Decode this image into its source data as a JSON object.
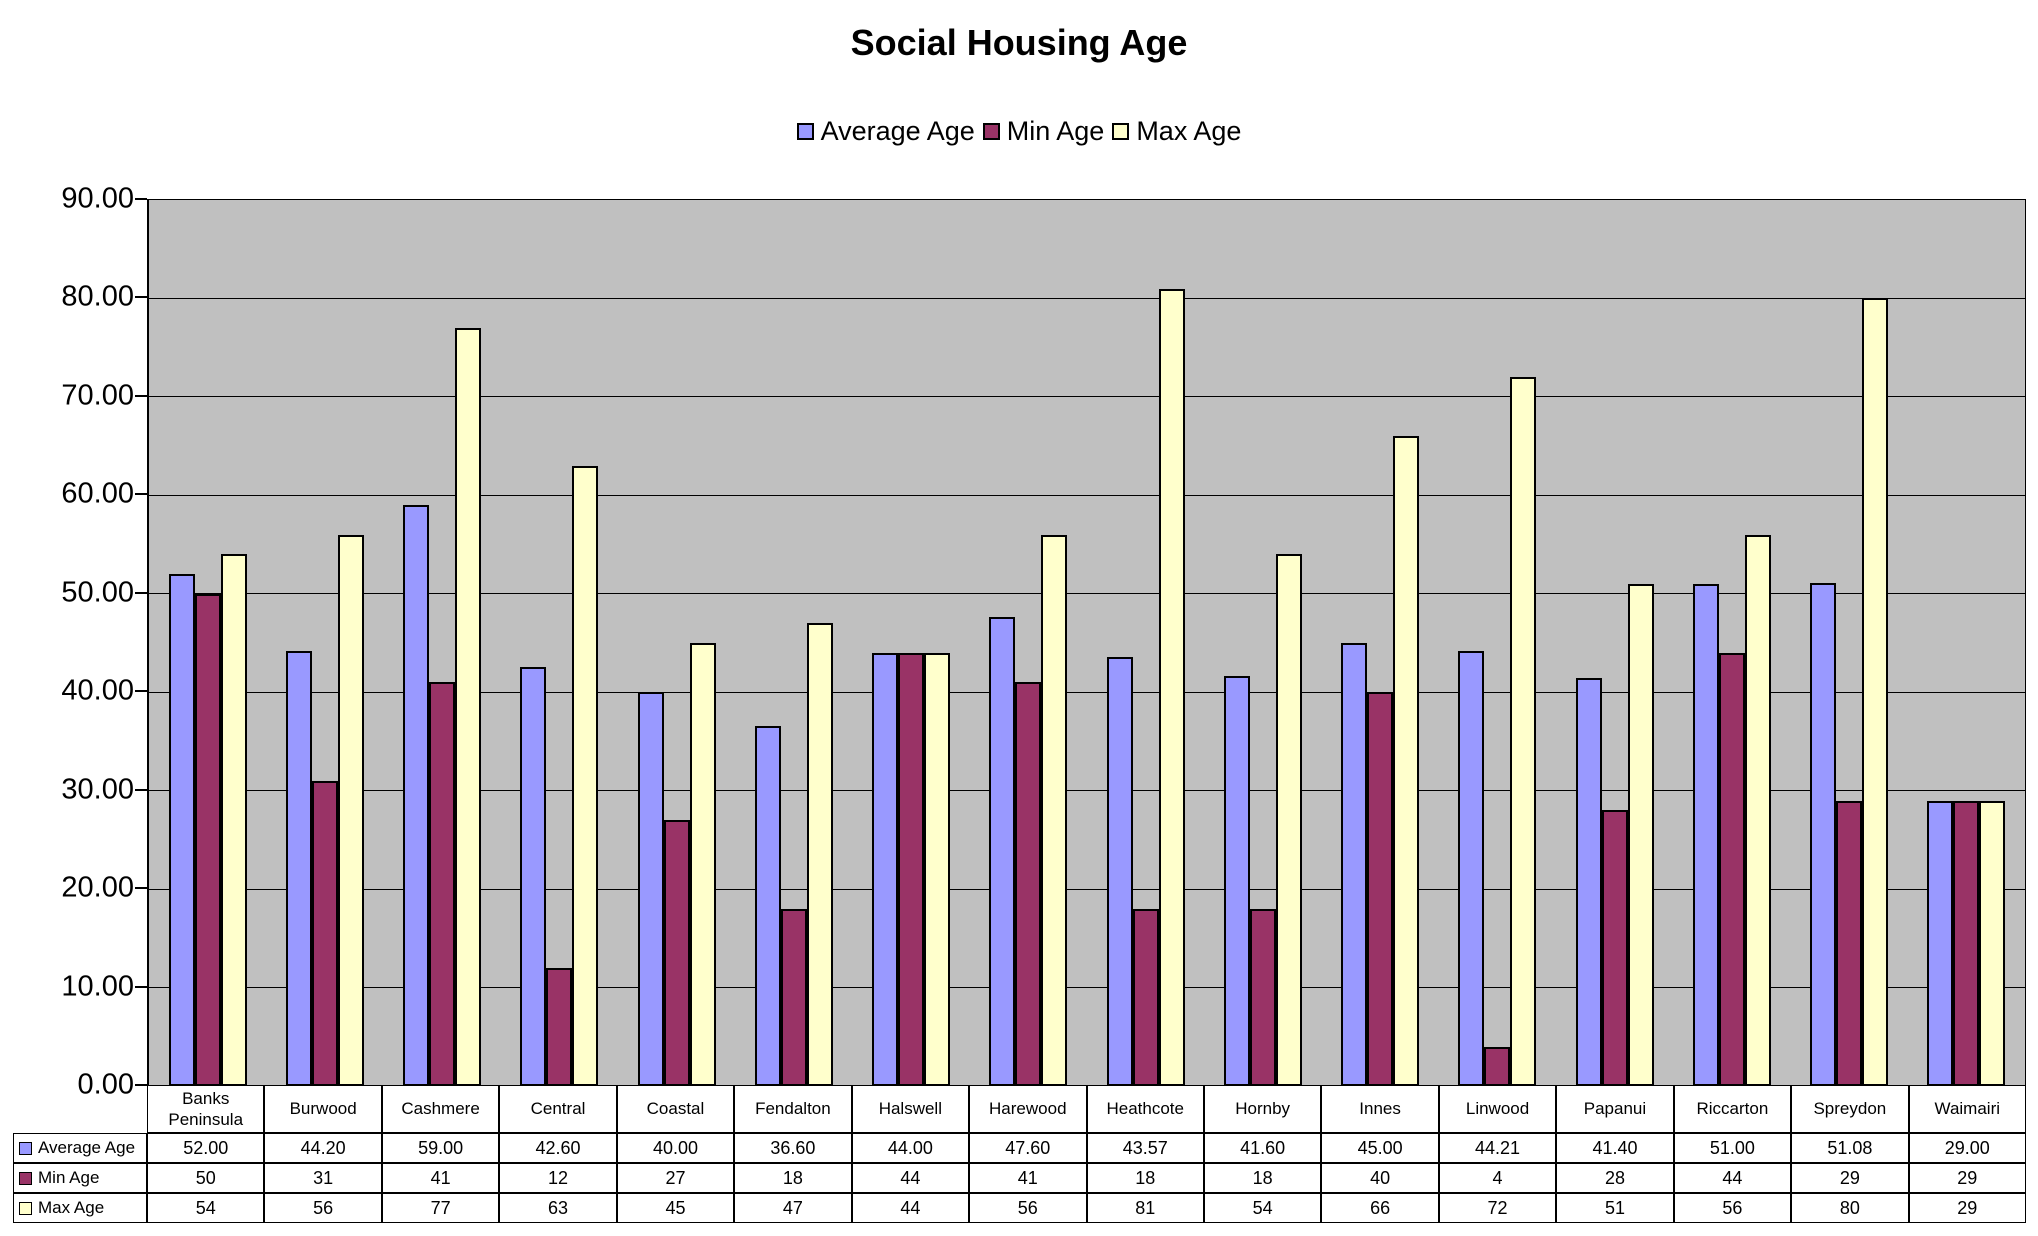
{
  "title": "Social Housing Age",
  "chart_data": {
    "type": "bar",
    "title": "Social Housing Age",
    "categories": [
      "Banks Peninsula",
      "Burwood",
      "Cashmere",
      "Central",
      "Coastal",
      "Fendalton",
      "Halswell",
      "Harewood",
      "Heathcote",
      "Hornby",
      "Innes",
      "Linwood",
      "Papanui",
      "Riccarton",
      "Spreydon",
      "Waimairi"
    ],
    "series": [
      {
        "name": "Average Age",
        "color": "#9999FF",
        "values": [
          52.0,
          44.2,
          59.0,
          42.6,
          40.0,
          36.6,
          44.0,
          47.6,
          43.57,
          41.6,
          45.0,
          44.21,
          41.4,
          51.0,
          51.08,
          29.0
        ],
        "display": [
          "52.00",
          "44.20",
          "59.00",
          "42.60",
          "40.00",
          "36.60",
          "44.00",
          "47.60",
          "43.57",
          "41.60",
          "45.00",
          "44.21",
          "41.40",
          "51.00",
          "51.08",
          "29.00"
        ]
      },
      {
        "name": "Min Age",
        "color": "#993366",
        "values": [
          50,
          31,
          41,
          12,
          27,
          18,
          44,
          41,
          18,
          18,
          40,
          4,
          28,
          44,
          29,
          29
        ],
        "display": [
          "50",
          "31",
          "41",
          "12",
          "27",
          "18",
          "44",
          "41",
          "18",
          "18",
          "40",
          "4",
          "28",
          "44",
          "29",
          "29"
        ]
      },
      {
        "name": "Max Age",
        "color": "#FFFFCC",
        "values": [
          54,
          56,
          77,
          63,
          45,
          47,
          44,
          56,
          81,
          54,
          66,
          72,
          51,
          56,
          80,
          29
        ],
        "display": [
          "54",
          "56",
          "77",
          "63",
          "45",
          "47",
          "44",
          "56",
          "81",
          "54",
          "66",
          "72",
          "51",
          "56",
          "80",
          "29"
        ]
      }
    ],
    "ylim": [
      0,
      90
    ],
    "ytick_step": 10,
    "ytick_labels": [
      "90.00",
      "80.00",
      "70.00",
      "60.00",
      "50.00",
      "40.00",
      "30.00",
      "20.00",
      "10.00",
      "0.00"
    ],
    "grid": true,
    "legend_position": "top",
    "plot_bg": "#C0C0C0",
    "bar_border_color": "#000000",
    "show_data_table": true
  }
}
